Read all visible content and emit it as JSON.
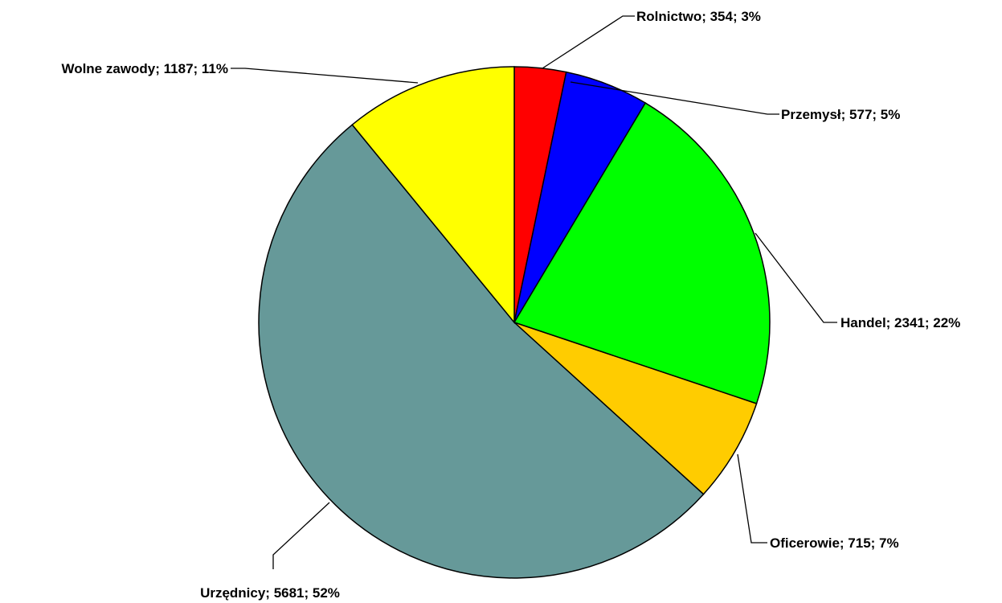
{
  "chart_data": {
    "type": "pie",
    "title": "",
    "slices": [
      {
        "label": "Rolnictwo; 354; 3%",
        "category": "Rolnictwo",
        "value": 354,
        "percent": 3,
        "color": "#FF0000"
      },
      {
        "label": "Przemysł; 577; 5%",
        "category": "Przemysł",
        "value": 577,
        "percent": 5,
        "color": "#0000FF"
      },
      {
        "label": "Handel; 2341; 22%",
        "category": "Handel",
        "value": 2341,
        "percent": 22,
        "color": "#00FF00"
      },
      {
        "label": "Oficerowie; 715; 7%",
        "category": "Oficerowie",
        "value": 715,
        "percent": 7,
        "color": "#FFCC00"
      },
      {
        "label": "Urzędnicy; 5681; 52%",
        "category": "Urzędnicy",
        "value": 5681,
        "percent": 52,
        "color": "#669999"
      },
      {
        "label": "Wolne zawody; 1187; 11%",
        "category": "Wolne zawody",
        "value": 1187,
        "percent": 11,
        "color": "#FFFF00"
      }
    ],
    "start_angle": "top",
    "direction": "clockwise",
    "legend": "none",
    "data_labels": "outside-with-leader-lines"
  }
}
